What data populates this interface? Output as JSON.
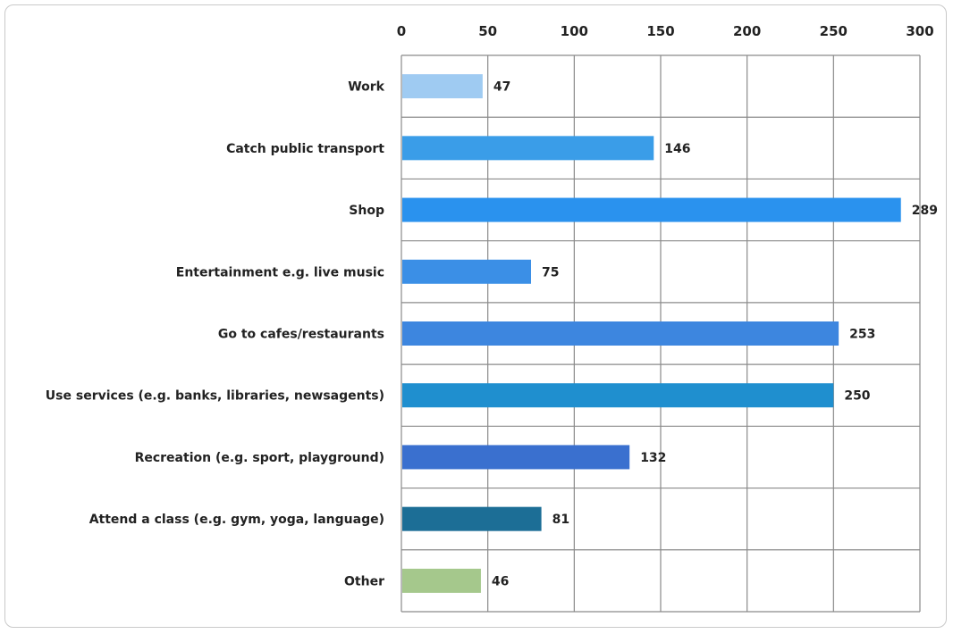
{
  "chart_data": {
    "type": "bar",
    "orientation": "horizontal",
    "title": "",
    "xlabel": "",
    "ylabel": "",
    "xlim": [
      0,
      300
    ],
    "ticks": [
      "0",
      "50",
      "100",
      "150",
      "200",
      "250",
      "300"
    ],
    "tick_values": [
      0,
      50,
      100,
      150,
      200,
      250,
      300
    ],
    "grid": true,
    "axis_position": "top",
    "categories": [
      "Work",
      "Catch public transport",
      "Shop",
      "Entertainment e.g. live music",
      "Go to cafes/restaurants",
      "Use services (e.g. banks, libraries, newsagents)",
      "Recreation (e.g. sport, playground)",
      "Attend a class (e.g. gym, yoga, language)",
      "Other"
    ],
    "values": [
      47,
      146,
      289,
      75,
      253,
      250,
      132,
      81,
      46
    ],
    "colors": [
      "#9fcbf2",
      "#3a9de8",
      "#2a92ee",
      "#3b8fe6",
      "#3d86df",
      "#1f8fcf",
      "#3a70cf",
      "#1c6e96",
      "#a5c88c"
    ]
  }
}
